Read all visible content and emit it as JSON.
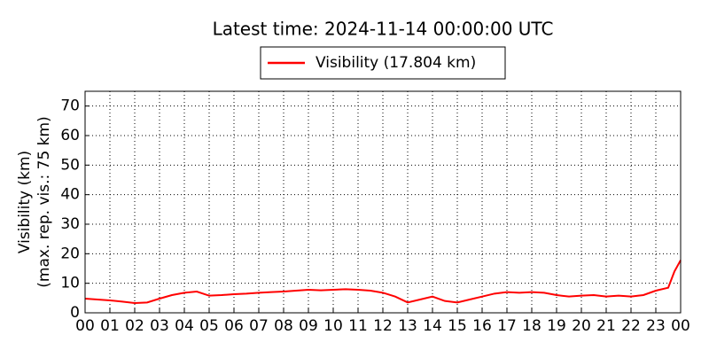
{
  "chart_data": {
    "type": "line",
    "title": "Latest time: 2024-11-14 00:00:00 UTC",
    "ylabel": [
      "Visibility (km)",
      "(max. rep. vis.: 75 km)"
    ],
    "x": [
      0,
      0.5,
      1,
      1.5,
      2,
      2.5,
      3,
      3.5,
      4,
      4.5,
      5,
      5.5,
      6,
      6.5,
      7,
      7.5,
      8,
      8.5,
      9,
      9.5,
      10,
      10.5,
      11,
      11.5,
      12,
      12.5,
      13,
      13.5,
      14,
      14.5,
      15,
      15.5,
      16,
      16.5,
      17,
      17.5,
      18,
      18.5,
      19,
      19.5,
      20,
      20.5,
      21,
      21.5,
      22,
      22.5,
      23,
      23.5,
      23.75,
      24
    ],
    "series": [
      {
        "name": "Visibility (17.804 km)",
        "color": "#ff0000",
        "values": [
          4.8,
          4.5,
          4.2,
          3.8,
          3.3,
          3.5,
          4.8,
          6,
          6.8,
          7.2,
          5.8,
          6,
          6.3,
          6.5,
          6.8,
          7,
          7.2,
          7.5,
          7.8,
          7.6,
          7.8,
          8,
          7.8,
          7.5,
          6.8,
          5.5,
          3.5,
          4.5,
          5.5,
          4,
          3.5,
          4.5,
          5.5,
          6.5,
          7,
          6.8,
          7,
          6.8,
          6,
          5.5,
          5.8,
          6,
          5.5,
          5.8,
          5.5,
          6,
          7.5,
          8.5,
          14,
          17.8
        ]
      }
    ],
    "xlim": [
      0,
      24
    ],
    "xticks": [
      {
        "value": 0,
        "label": "00"
      },
      {
        "value": 1,
        "label": "01"
      },
      {
        "value": 2,
        "label": "02"
      },
      {
        "value": 3,
        "label": "03"
      },
      {
        "value": 4,
        "label": "04"
      },
      {
        "value": 5,
        "label": "05"
      },
      {
        "value": 6,
        "label": "06"
      },
      {
        "value": 7,
        "label": "07"
      },
      {
        "value": 8,
        "label": "08"
      },
      {
        "value": 9,
        "label": "09"
      },
      {
        "value": 10,
        "label": "10"
      },
      {
        "value": 11,
        "label": "11"
      },
      {
        "value": 12,
        "label": "12"
      },
      {
        "value": 13,
        "label": "13"
      },
      {
        "value": 14,
        "label": "14"
      },
      {
        "value": 15,
        "label": "15"
      },
      {
        "value": 16,
        "label": "16"
      },
      {
        "value": 17,
        "label": "17"
      },
      {
        "value": 18,
        "label": "18"
      },
      {
        "value": 19,
        "label": "19"
      },
      {
        "value": 20,
        "label": "20"
      },
      {
        "value": 21,
        "label": "21"
      },
      {
        "value": 22,
        "label": "22"
      },
      {
        "value": 23,
        "label": "23"
      },
      {
        "value": 24,
        "label": "00"
      }
    ],
    "ylim": [
      0,
      75
    ],
    "yticks": [
      0,
      10,
      20,
      30,
      40,
      50,
      60,
      70
    ],
    "grid": true
  }
}
